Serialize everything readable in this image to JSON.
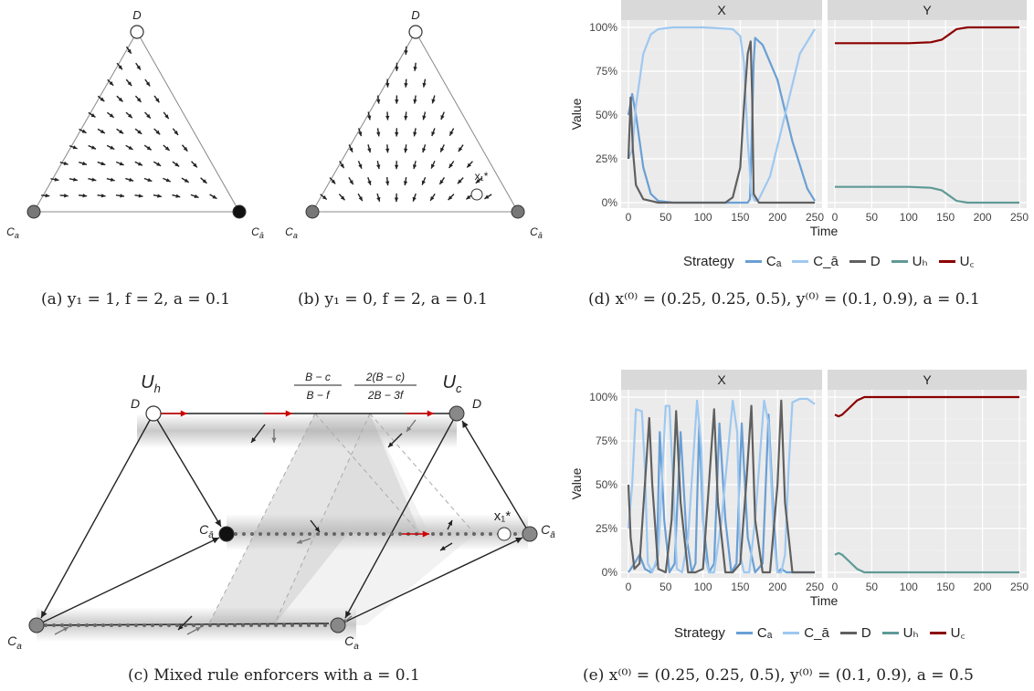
{
  "triangles": {
    "a": {
      "top": "D",
      "left": "C",
      "left_sub": "a",
      "right": "C",
      "right_sub": "ā",
      "eq_label": ""
    },
    "b": {
      "top": "D",
      "left": "C",
      "left_sub": "a",
      "right": "C",
      "right_sub": "ā",
      "eq_label": "x₁*"
    }
  },
  "captions": {
    "a": "(a) y₁ = 1, f = 2, a = 0.1",
    "b": "(b) y₁ = 0, f = 2, a = 0.1",
    "c": "(c) Mixed rule enforcers with a = 0.1",
    "d": "(d) x⁽⁰⁾ = (0.25, 0.25, 0.5), y⁽⁰⁾ = (0.1, 0.9), a = 0.1",
    "e": "(e) x⁽⁰⁾ = (0.25, 0.25, 0.5), y⁽⁰⁾ = (0.1, 0.9), a = 0.5"
  },
  "diagram_c": {
    "uh": "U",
    "uh_sub": "h",
    "uc": "U",
    "uc_sub": "c",
    "frac1_num": "B − c",
    "frac1_den": "B − f",
    "frac2_num": "2(B − c)",
    "frac2_den": "2B − 3f",
    "d_left": "D",
    "d_right": "D",
    "cabar_left": "C",
    "cabar_right": "C",
    "cabar_sub": "ā",
    "ca_left": "C",
    "ca_right": "C",
    "ca_sub": "a",
    "x1": "x₁*"
  },
  "chart_data": [
    {
      "type": "line",
      "panels": [
        "X",
        "Y"
      ],
      "xlabel": "Time",
      "ylabel": "Value",
      "x_ticks": [
        0,
        50,
        100,
        150,
        200,
        250
      ],
      "y_ticks": [
        "0%",
        "25%",
        "50%",
        "75%",
        "100%"
      ],
      "ylim": [
        0,
        1
      ],
      "xlim": [
        0,
        250
      ],
      "legend": {
        "title": "Strategy",
        "items": [
          "Cₐ",
          "C_ā",
          "D",
          "Uₕ",
          "U꜀"
        ]
      },
      "series": [
        {
          "name": "Cₐ",
          "panel": "X",
          "color": "#6a9fd4",
          "x": [
            0,
            5,
            10,
            20,
            30,
            40,
            60,
            100,
            140,
            150,
            155,
            160,
            163,
            165,
            168,
            170,
            180,
            200,
            220,
            240,
            250
          ],
          "y": [
            0.5,
            0.62,
            0.5,
            0.2,
            0.05,
            0.01,
            0.0,
            0.0,
            0.0,
            0.0,
            0.0,
            0.0,
            0.02,
            0.3,
            0.8,
            0.94,
            0.9,
            0.7,
            0.35,
            0.08,
            0.01
          ]
        },
        {
          "name": "C_ā",
          "panel": "X",
          "color": "#9ec8f0",
          "x": [
            0,
            5,
            10,
            20,
            30,
            40,
            60,
            100,
            140,
            150,
            155,
            160,
            165,
            170,
            175,
            190,
            210,
            230,
            250
          ],
          "y": [
            0.25,
            0.3,
            0.55,
            0.85,
            0.96,
            0.99,
            1.0,
            1.0,
            0.99,
            0.95,
            0.8,
            0.35,
            0.05,
            0.01,
            0.02,
            0.15,
            0.5,
            0.85,
            0.99
          ]
        },
        {
          "name": "D",
          "panel": "X",
          "color": "#606060",
          "x": [
            0,
            3,
            6,
            10,
            20,
            40,
            100,
            130,
            140,
            150,
            155,
            160,
            164,
            166,
            168,
            175,
            200,
            250
          ],
          "y": [
            0.25,
            0.6,
            0.3,
            0.1,
            0.02,
            0.0,
            0.0,
            0.0,
            0.03,
            0.2,
            0.55,
            0.85,
            0.92,
            0.6,
            0.05,
            0.0,
            0.0,
            0.0
          ]
        },
        {
          "name": "Uₕ",
          "panel": "Y",
          "color": "#5f9a96",
          "x": [
            0,
            50,
            100,
            130,
            145,
            155,
            165,
            180,
            250
          ],
          "y": [
            0.09,
            0.09,
            0.09,
            0.085,
            0.07,
            0.04,
            0.01,
            0.0,
            0.0
          ]
        },
        {
          "name": "U꜀",
          "panel": "Y",
          "color": "#8b0000",
          "x": [
            0,
            50,
            100,
            130,
            145,
            155,
            165,
            180,
            250
          ],
          "y": [
            0.91,
            0.91,
            0.91,
            0.915,
            0.93,
            0.96,
            0.99,
            1.0,
            1.0
          ]
        }
      ]
    },
    {
      "type": "line",
      "panels": [
        "X",
        "Y"
      ],
      "xlabel": "Time",
      "ylabel": "Value",
      "x_ticks": [
        0,
        50,
        100,
        150,
        200,
        250
      ],
      "y_ticks": [
        "0%",
        "25%",
        "50%",
        "75%",
        "100%"
      ],
      "ylim": [
        0,
        1
      ],
      "xlim": [
        0,
        250
      ],
      "legend": {
        "title": "Strategy",
        "items": [
          "Cₐ",
          "C_ā",
          "D",
          "Uₕ",
          "U꜀"
        ]
      },
      "series": [
        {
          "name": "Cₐ",
          "panel": "X",
          "color": "#6a9fd4",
          "x": [
            0,
            8,
            15,
            22,
            30,
            38,
            42,
            48,
            55,
            62,
            70,
            78,
            85,
            90,
            95,
            100,
            108,
            115,
            122,
            130,
            138,
            145,
            152,
            160,
            170,
            180,
            188,
            195,
            200,
            205,
            212,
            220,
            230,
            240,
            250
          ],
          "y": [
            0.0,
            0.05,
            0.1,
            0.02,
            0.0,
            0.05,
            0.8,
            0.3,
            0.0,
            0.05,
            0.8,
            0.2,
            0.0,
            0.05,
            0.85,
            0.3,
            0.0,
            0.05,
            0.85,
            0.3,
            0.0,
            0.05,
            0.85,
            0.2,
            0.0,
            0.05,
            0.9,
            0.3,
            0.0,
            0.02,
            0.0,
            0.0,
            0.0,
            0.0,
            0.0
          ]
        },
        {
          "name": "C_ā",
          "panel": "X",
          "color": "#9ec8f0",
          "x": [
            0,
            5,
            10,
            18,
            22,
            26,
            32,
            40,
            50,
            55,
            60,
            65,
            72,
            80,
            92,
            98,
            102,
            108,
            115,
            125,
            140,
            146,
            150,
            155,
            162,
            170,
            182,
            188,
            195,
            200,
            205,
            210,
            215,
            220,
            230,
            240,
            250
          ],
          "y": [
            0.25,
            0.5,
            0.93,
            0.92,
            0.6,
            0.05,
            0.0,
            0.1,
            0.95,
            0.95,
            0.5,
            0.02,
            0.0,
            0.2,
            0.98,
            0.7,
            0.1,
            0.0,
            0.0,
            0.3,
            0.98,
            0.8,
            0.1,
            0.0,
            0.0,
            0.3,
            0.98,
            0.85,
            0.2,
            0.0,
            0.0,
            0.1,
            0.6,
            0.97,
            0.99,
            0.99,
            0.96
          ]
        },
        {
          "name": "D",
          "panel": "X",
          "color": "#606060",
          "x": [
            0,
            3,
            8,
            15,
            22,
            28,
            32,
            40,
            50,
            58,
            64,
            70,
            80,
            90,
            100,
            108,
            115,
            120,
            130,
            140,
            150,
            158,
            165,
            170,
            180,
            190,
            200,
            205,
            210,
            220,
            250
          ],
          "y": [
            0.5,
            0.2,
            0.02,
            0.05,
            0.5,
            0.88,
            0.5,
            0.02,
            0.0,
            0.3,
            0.92,
            0.4,
            0.0,
            0.0,
            0.02,
            0.5,
            0.93,
            0.4,
            0.0,
            0.0,
            0.05,
            0.5,
            0.95,
            0.3,
            0.0,
            0.0,
            0.5,
            0.98,
            0.4,
            0.0,
            0.0
          ]
        },
        {
          "name": "Uₕ",
          "panel": "Y",
          "color": "#5f9a96",
          "x": [
            0,
            5,
            10,
            20,
            30,
            40,
            60,
            250
          ],
          "y": [
            0.1,
            0.11,
            0.1,
            0.06,
            0.02,
            0.0,
            0.0,
            0.0
          ]
        },
        {
          "name": "U꜀",
          "panel": "Y",
          "color": "#8b0000",
          "x": [
            0,
            5,
            10,
            20,
            30,
            40,
            60,
            250
          ],
          "y": [
            0.9,
            0.89,
            0.9,
            0.94,
            0.98,
            1.0,
            1.0,
            1.0
          ]
        }
      ]
    }
  ]
}
